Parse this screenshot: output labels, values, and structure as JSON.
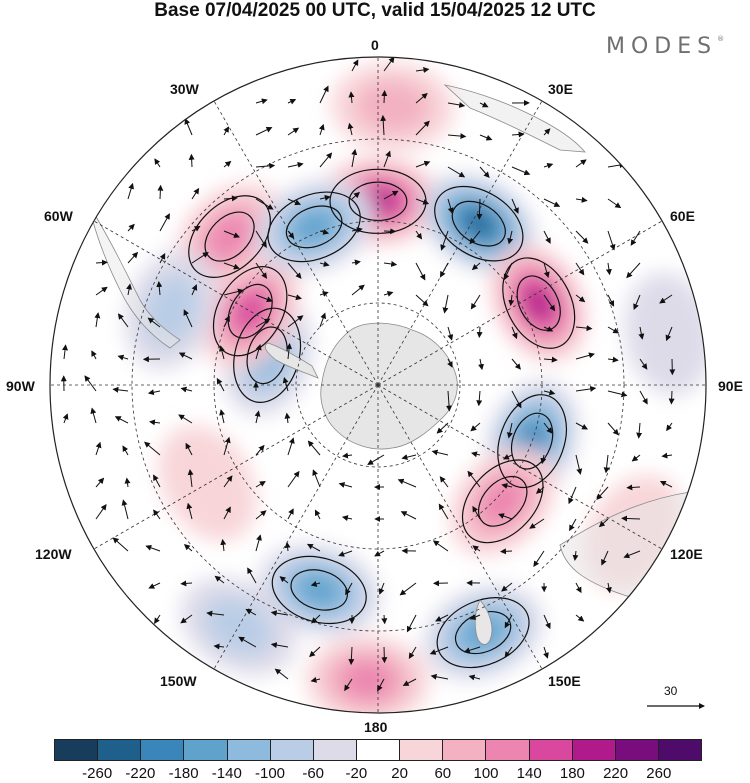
{
  "title": "Base 07/04/2025 00 UTC, valid 15/04/2025 12 UTC",
  "logo": "MODES",
  "logo_mark": "®",
  "longitude_labels": {
    "lon_0": "0",
    "lon_30e": "30E",
    "lon_60e": "60E",
    "lon_90e": "90E",
    "lon_120e": "120E",
    "lon_150e": "150E",
    "lon_180": "180",
    "lon_150w": "150W",
    "lon_120w": "120W",
    "lon_90w": "90W",
    "lon_60w": "60W",
    "lon_30w": "30W"
  },
  "reference_vector": "30",
  "colorbar": {
    "ticks": [
      "-260",
      "-220",
      "-180",
      "-140",
      "-100",
      "-60",
      "-20",
      "20",
      "60",
      "100",
      "140",
      "180",
      "220",
      "260"
    ],
    "colors": [
      "#173c5c",
      "#1f5f8b",
      "#3a86ba",
      "#5fa3cd",
      "#8dbadd",
      "#b9cde6",
      "#dedbe9",
      "#ffffff",
      "#f8d5d9",
      "#f3b1c1",
      "#ec86b0",
      "#d9489e",
      "#b11a8a",
      "#7a0d7d",
      "#4e0b6a"
    ]
  },
  "anomalies": [
    {
      "lon": 0,
      "lat_dist": 0.56,
      "value": 200
    },
    {
      "lon": 3,
      "lat_dist": 0.85,
      "value": 80
    },
    {
      "lon": 32,
      "lat_dist": 0.58,
      "value": -240
    },
    {
      "lon": 63,
      "lat_dist": 0.55,
      "value": 220
    },
    {
      "lon": 110,
      "lat_dist": 0.5,
      "value": -220
    },
    {
      "lon": 133,
      "lat_dist": 0.52,
      "value": 150
    },
    {
      "lon": 157,
      "lat_dist": 0.82,
      "value": -160
    },
    {
      "lon": 182,
      "lat_dist": 0.9,
      "value": 120
    },
    {
      "lon": 196,
      "lat_dist": 0.65,
      "value": -170
    },
    {
      "lon": 285,
      "lat_dist": 0.35,
      "value": -140
    },
    {
      "lon": 300,
      "lat_dist": 0.45,
      "value": 170
    },
    {
      "lon": 315,
      "lat_dist": 0.64,
      "value": 140
    },
    {
      "lon": 338,
      "lat_dist": 0.52,
      "value": -170
    },
    {
      "lon": 290,
      "lat_dist": 0.67,
      "value": -90
    },
    {
      "lon": 210,
      "lat_dist": 0.85,
      "value": -80
    },
    {
      "lon": 240,
      "lat_dist": 0.6,
      "value": 50
    },
    {
      "lon": 80,
      "lat_dist": 0.9,
      "value": -60
    },
    {
      "lon": 120,
      "lat_dist": 0.9,
      "value": 50
    }
  ]
}
